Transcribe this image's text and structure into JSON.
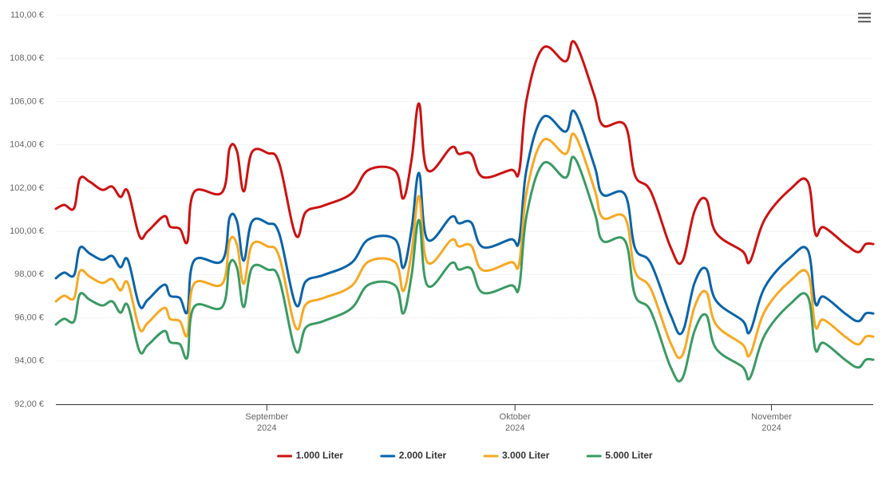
{
  "chart_data": {
    "type": "line",
    "x": [
      6.5,
      7.5,
      8.7,
      9.4,
      10.6,
      12.1,
      13.3,
      14.3,
      15.2,
      16.6,
      17.6,
      19.6,
      20.3,
      21.5,
      22.4,
      23.2,
      26.6,
      27.5,
      28.4,
      29.2,
      30.2,
      32.1,
      33.5,
      35.5,
      36.7,
      38.8,
      42.2,
      44.3,
      47.5,
      48.5,
      49.5,
      50.4,
      51.4,
      54.3,
      55.2,
      56.7,
      58.1,
      61.5,
      62.5,
      63.4,
      65.4,
      68.1,
      69.2,
      71.6,
      72.6,
      75.3,
      76.5,
      78.4,
      80.8,
      82.2,
      83.7,
      85.1,
      86.3,
      89.5,
      90.4,
      92.2,
      95.3,
      97.4,
      98.3,
      99.3,
      102.0,
      103.5,
      104.4,
      105.3
    ],
    "series": [
      {
        "name": "1.000 Liter",
        "color": "#cc1111",
        "values": [
          101.04,
          101.22,
          101.07,
          102.44,
          102.29,
          101.92,
          102.07,
          101.59,
          101.85,
          99.78,
          100.0,
          100.7,
          100.22,
          100.11,
          99.52,
          101.81,
          101.81,
          103.84,
          103.69,
          101.85,
          103.66,
          103.62,
          103.14,
          99.82,
          100.89,
          101.18,
          101.74,
          102.84,
          102.81,
          101.52,
          103.32,
          105.91,
          102.84,
          103.88,
          103.58,
          103.58,
          102.51,
          102.84,
          102.77,
          106.09,
          108.49,
          107.86,
          108.75,
          106.27,
          104.91,
          104.91,
          102.59,
          101.85,
          99.27,
          98.6,
          100.93,
          101.48,
          99.93,
          99.08,
          98.6,
          100.56,
          101.96,
          102.29,
          99.89,
          100.19,
          99.38,
          99.04,
          99.41,
          99.41
        ]
      },
      {
        "name": "2.000 Liter",
        "color": "#0a63a8",
        "values": [
          97.83,
          98.09,
          97.97,
          99.23,
          98.97,
          98.68,
          98.86,
          98.34,
          98.68,
          96.57,
          96.83,
          97.53,
          97.02,
          96.91,
          96.28,
          98.64,
          98.64,
          100.63,
          100.45,
          98.64,
          100.45,
          100.37,
          99.89,
          96.61,
          97.68,
          97.97,
          98.53,
          99.63,
          99.63,
          98.31,
          100.11,
          102.7,
          99.63,
          100.67,
          100.37,
          100.41,
          99.27,
          99.63,
          99.56,
          102.88,
          105.28,
          104.61,
          105.54,
          103.03,
          101.7,
          101.7,
          99.23,
          98.53,
          96.13,
          95.32,
          97.61,
          98.27,
          96.79,
          95.87,
          95.36,
          97.42,
          98.79,
          99.12,
          96.68,
          96.98,
          96.17,
          95.84,
          96.2,
          96.2
        ]
      },
      {
        "name": "3.000 Liter",
        "color": "#f7a822",
        "values": [
          96.76,
          97.02,
          96.91,
          98.16,
          97.9,
          97.61,
          97.79,
          97.27,
          97.61,
          95.5,
          95.76,
          96.46,
          95.95,
          95.84,
          95.21,
          97.57,
          97.57,
          99.56,
          99.38,
          97.57,
          99.38,
          99.3,
          98.82,
          95.54,
          96.61,
          96.91,
          97.46,
          98.6,
          98.57,
          97.24,
          99.04,
          101.63,
          98.57,
          99.6,
          99.3,
          99.34,
          98.2,
          98.57,
          98.49,
          101.81,
          104.21,
          103.58,
          104.47,
          101.96,
          100.63,
          100.63,
          98.16,
          97.35,
          94.84,
          94.25,
          96.5,
          97.2,
          95.69,
          94.77,
          94.29,
          96.31,
          97.72,
          98.05,
          95.61,
          95.91,
          95.1,
          94.77,
          95.13,
          95.13
        ]
      },
      {
        "name": "5.000 Liter",
        "color": "#3a9a64",
        "values": [
          95.69,
          95.95,
          95.84,
          97.09,
          96.83,
          96.57,
          96.76,
          96.24,
          96.57,
          94.47,
          94.73,
          95.39,
          94.88,
          94.77,
          94.18,
          96.5,
          96.5,
          98.49,
          98.31,
          96.5,
          98.31,
          98.23,
          97.79,
          94.47,
          95.54,
          95.84,
          96.43,
          97.53,
          97.5,
          96.2,
          97.97,
          100.52,
          97.5,
          98.53,
          98.23,
          98.27,
          97.16,
          97.5,
          97.42,
          100.74,
          103.14,
          102.48,
          103.4,
          100.89,
          99.56,
          99.56,
          97.05,
          96.31,
          93.73,
          93.18,
          95.39,
          96.13,
          94.58,
          93.73,
          93.22,
          95.21,
          96.65,
          96.98,
          94.54,
          94.84,
          94.03,
          93.7,
          94.06,
          94.06
        ]
      }
    ],
    "xlim": [
      6.5,
      105.3
    ],
    "xticks": [
      {
        "value": 32,
        "label": [
          "September",
          "2024"
        ]
      },
      {
        "value": 62,
        "label": [
          "Oktober",
          "2024"
        ]
      },
      {
        "value": 93,
        "label": [
          "November",
          "2024"
        ]
      }
    ],
    "ylim": [
      92,
      110
    ],
    "yticks": [
      {
        "value": 92,
        "label": "92,00 €"
      },
      {
        "value": 94,
        "label": "94,00 €"
      },
      {
        "value": 96,
        "label": "96,00 €"
      },
      {
        "value": 98,
        "label": "98,00 €"
      },
      {
        "value": 100,
        "label": "100,00 €"
      },
      {
        "value": 102,
        "label": "102,00 €"
      },
      {
        "value": 104,
        "label": "104,00 €"
      },
      {
        "value": 106,
        "label": "106,00 €"
      },
      {
        "value": 108,
        "label": "108,00 €"
      },
      {
        "value": 110,
        "label": "110,00 €"
      }
    ],
    "grid": true,
    "legend": "bottom"
  }
}
